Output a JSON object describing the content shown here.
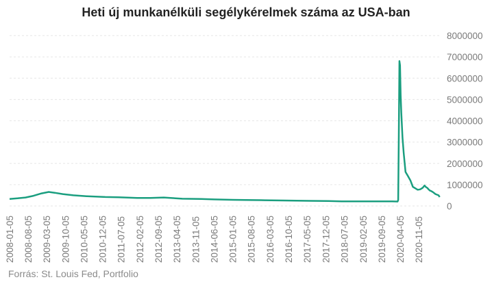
{
  "chart_data": {
    "type": "line",
    "title": "Heti új munkanélküli segélykérelmek száma az USA-ban",
    "source": "Forrás: St. Louis Fed, Portfolio",
    "xlabel": "",
    "ylabel": "",
    "ylim": [
      0,
      8000000
    ],
    "y_ticks": [
      0,
      1000000,
      2000000,
      3000000,
      4000000,
      5000000,
      6000000,
      7000000,
      8000000
    ],
    "y_tick_labels": [
      "0",
      "1000000",
      "2000000",
      "3000000",
      "4000000",
      "5000000",
      "6000000",
      "7000000",
      "8000000"
    ],
    "x_range": [
      "2008-01-05",
      "2021-07-05"
    ],
    "x_tick_labels": [
      "2008-01-05",
      "2008-08-05",
      "2009-03-05",
      "2009-10-05",
      "2010-05-05",
      "2010-12-05",
      "2011-07-05",
      "2012-02-05",
      "2012-09-05",
      "2013-04-05",
      "2013-11-05",
      "2014-06-05",
      "2015-01-05",
      "2015-08-05",
      "2016-03-05",
      "2016-10-05",
      "2017-05-05",
      "2017-12-05",
      "2018-07-05",
      "2019-02-05",
      "2019-09-05",
      "2020-04-05",
      "2020-11-05"
    ],
    "grid": true,
    "line_color": "#1a9e7f",
    "series": [
      {
        "x": [
          "2008-01-05",
          "2008-04-05",
          "2008-07-05",
          "2008-10-05",
          "2009-01-05",
          "2009-03-28",
          "2009-06-05",
          "2009-09-05",
          "2010-01-05",
          "2010-06-05",
          "2011-01-05",
          "2011-06-05",
          "2012-01-05",
          "2012-06-05",
          "2012-11-05",
          "2013-06-05",
          "2014-01-05",
          "2014-06-05",
          "2015-01-05",
          "2015-06-05",
          "2016-01-05",
          "2016-06-05",
          "2017-01-05",
          "2017-06-05",
          "2018-01-05",
          "2018-06-05",
          "2019-01-05",
          "2019-06-05",
          "2020-01-05",
          "2020-03-07",
          "2020-03-14",
          "2020-03-21",
          "2020-03-28",
          "2020-04-04",
          "2020-04-11",
          "2020-04-18",
          "2020-04-25",
          "2020-05-02",
          "2020-05-16",
          "2020-06-06",
          "2020-07-04",
          "2020-08-01",
          "2020-08-29",
          "2020-09-26",
          "2020-10-24",
          "2020-11-21",
          "2020-12-19",
          "2021-01-09",
          "2021-01-23",
          "2021-02-13",
          "2021-02-27",
          "2021-03-13",
          "2021-03-27",
          "2021-04-17",
          "2021-05-15",
          "2021-06-19",
          "2021-07-03"
        ],
        "y": [
          330000,
          360000,
          400000,
          480000,
          590000,
          660000,
          620000,
          560000,
          500000,
          460000,
          420000,
          410000,
          380000,
          380000,
          400000,
          340000,
          330000,
          310000,
          290000,
          280000,
          270000,
          260000,
          250000,
          240000,
          230000,
          220000,
          220000,
          220000,
          220000,
          210000,
          280000,
          3300000,
          6800000,
          6600000,
          5200000,
          4400000,
          3800000,
          3200000,
          2500000,
          1600000,
          1400000,
          1200000,
          900000,
          830000,
          760000,
          780000,
          850000,
          960000,
          900000,
          840000,
          770000,
          720000,
          700000,
          650000,
          560000,
          500000,
          420000
        ]
      }
    ]
  }
}
